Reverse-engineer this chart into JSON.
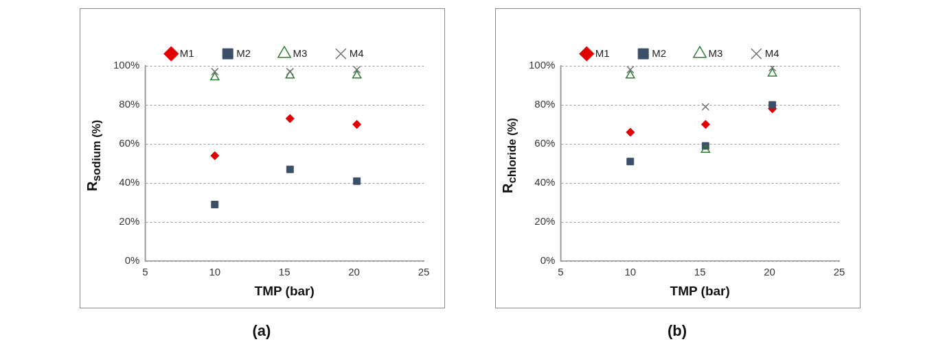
{
  "chart_data": [
    {
      "type": "scatter",
      "title": "(a)",
      "xlabel": "TMP (bar)",
      "ylabel": "R$_{sodium (%)}$",
      "x": [
        10,
        15.4,
        20.2
      ],
      "xlim": [
        5,
        25
      ],
      "xticks": [
        5,
        10,
        15,
        20,
        25
      ],
      "ylim": [
        0,
        100
      ],
      "yticks": [
        {
          "value": 0,
          "label": "0%"
        },
        {
          "value": 20,
          "label": "20%"
        },
        {
          "value": 40,
          "label": "40%"
        },
        {
          "value": 60,
          "label": "60%"
        },
        {
          "value": 80,
          "label": "80%"
        },
        {
          "value": 100,
          "label": "100%"
        }
      ],
      "grid": "y",
      "legend": "top",
      "series": [
        {
          "name": "M1",
          "color": "#e00000",
          "marker": "diamond",
          "values": [
            54,
            73,
            70
          ]
        },
        {
          "name": "M2",
          "color": "#3b5068",
          "marker": "square",
          "values": [
            29,
            47,
            41
          ]
        },
        {
          "name": "M3",
          "color": "#2e7d32",
          "marker": "triangle",
          "values": [
            94,
            95,
            95
          ]
        },
        {
          "name": "M4",
          "color": "#707070",
          "marker": "cross",
          "values": [
            97,
            97,
            98
          ]
        }
      ]
    },
    {
      "type": "scatter",
      "title": "(b)",
      "xlabel": "TMP (bar)",
      "ylabel": "R$_{chloride (%)}$",
      "x": [
        10,
        15.4,
        20.2
      ],
      "xlim": [
        5,
        25
      ],
      "xticks": [
        5,
        10,
        15,
        20,
        25
      ],
      "ylim": [
        0,
        100
      ],
      "yticks": [
        {
          "value": 0,
          "label": "0%"
        },
        {
          "value": 20,
          "label": "20%"
        },
        {
          "value": 40,
          "label": "40%"
        },
        {
          "value": 60,
          "label": "60%"
        },
        {
          "value": 80,
          "label": "80%"
        },
        {
          "value": 100,
          "label": "100%"
        }
      ],
      "grid": "y",
      "legend": "top",
      "series": [
        {
          "name": "M1",
          "color": "#e00000",
          "marker": "diamond",
          "values": [
            66,
            70,
            78
          ]
        },
        {
          "name": "M2",
          "color": "#3b5068",
          "marker": "square",
          "values": [
            51,
            59,
            80
          ]
        },
        {
          "name": "M3",
          "color": "#2e7d32",
          "marker": "triangle",
          "values": [
            95,
            57,
            96
          ]
        },
        {
          "name": "M4",
          "color": "#707070",
          "marker": "cross",
          "values": [
            98,
            79,
            99
          ]
        }
      ]
    }
  ]
}
